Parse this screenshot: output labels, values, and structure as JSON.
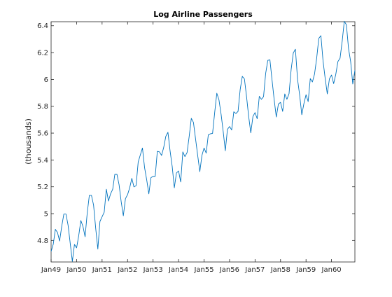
{
  "chart_data": {
    "type": "line",
    "title": "Log Airline Passengers",
    "xlabel": "",
    "ylabel": "(thousands)",
    "xlim": [
      "Jan49",
      "Dec60"
    ],
    "ylim": [
      4.64,
      6.43
    ],
    "xticks": [
      "Jan49",
      "Jan50",
      "Jan51",
      "Jan52",
      "Jan53",
      "Jan54",
      "Jan55",
      "Jan56",
      "Jan57",
      "Jan58",
      "Jan59",
      "Jan60"
    ],
    "yticks": [
      "4.8",
      "5",
      "5.2",
      "5.4",
      "5.6",
      "5.8",
      "6",
      "6.2",
      "6.4"
    ],
    "grid": false,
    "line_color": "#0072bd",
    "series": [
      {
        "name": "",
        "values": [
          4.718,
          4.771,
          4.883,
          4.86,
          4.796,
          4.905,
          4.997,
          4.997,
          4.913,
          4.779,
          4.644,
          4.771,
          4.745,
          4.836,
          4.949,
          4.905,
          4.828,
          5.004,
          5.136,
          5.136,
          5.063,
          4.89,
          4.736,
          4.942,
          4.977,
          5.011,
          5.182,
          5.094,
          5.148,
          5.182,
          5.293,
          5.293,
          5.215,
          5.088,
          4.984,
          5.112,
          5.142,
          5.193,
          5.263,
          5.199,
          5.209,
          5.385,
          5.438,
          5.489,
          5.343,
          5.252,
          5.147,
          5.268,
          5.278,
          5.278,
          5.464,
          5.46,
          5.434,
          5.493,
          5.576,
          5.606,
          5.468,
          5.352,
          5.193,
          5.303,
          5.318,
          5.236,
          5.46,
          5.425,
          5.455,
          5.576,
          5.71,
          5.68,
          5.557,
          5.434,
          5.313,
          5.434,
          5.489,
          5.451,
          5.587,
          5.595,
          5.598,
          5.753,
          5.897,
          5.849,
          5.743,
          5.613,
          5.469,
          5.628,
          5.649,
          5.624,
          5.759,
          5.746,
          5.762,
          5.924,
          6.023,
          6.004,
          5.872,
          5.724,
          5.602,
          5.724,
          5.753,
          5.707,
          5.874,
          5.852,
          5.872,
          6.045,
          6.142,
          6.146,
          5.995,
          5.849,
          5.72,
          5.817,
          5.829,
          5.762,
          5.892,
          5.852,
          5.894,
          6.075,
          6.197,
          6.225,
          6.001,
          5.883,
          5.737,
          5.82,
          5.886,
          5.835,
          6.006,
          5.981,
          6.04,
          6.157,
          6.306,
          6.326,
          6.138,
          6.009,
          5.892,
          6.004,
          6.033,
          5.969,
          6.038,
          6.133,
          6.157,
          6.282,
          6.433,
          6.407,
          6.23,
          6.133,
          5.966,
          6.068
        ]
      }
    ]
  }
}
